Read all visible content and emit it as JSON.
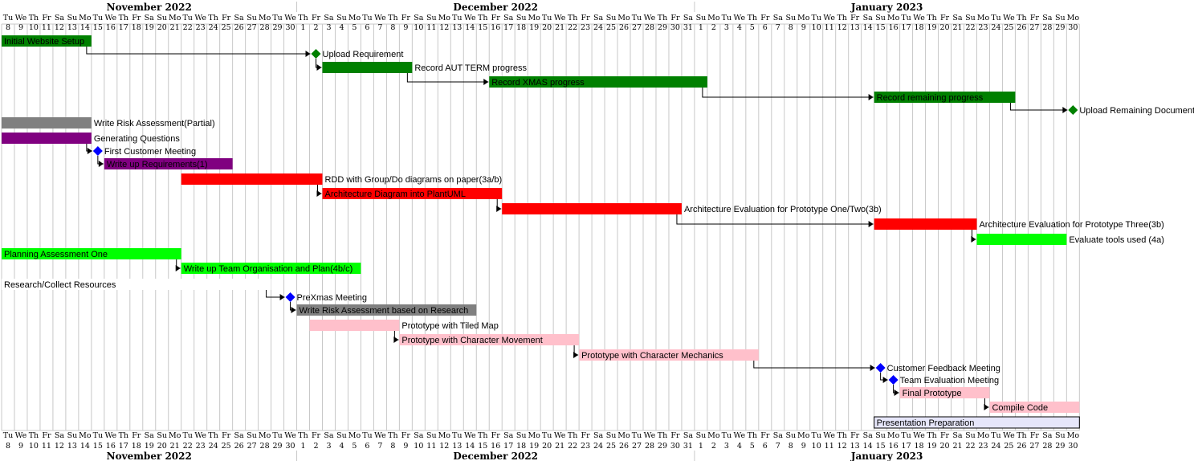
{
  "months": [
    {
      "label": "November 2022",
      "start": 0,
      "end": 23
    },
    {
      "label": "December 2022",
      "start": 23,
      "end": 54
    },
    {
      "label": "January 2023",
      "start": 54,
      "end": 84
    }
  ],
  "days": [
    {
      "w": "Tu",
      "n": "8"
    },
    {
      "w": "We",
      "n": "9"
    },
    {
      "w": "Th",
      "n": "10"
    },
    {
      "w": "Fr",
      "n": "11"
    },
    {
      "w": "Sa",
      "n": "12"
    },
    {
      "w": "Su",
      "n": "13"
    },
    {
      "w": "Mo",
      "n": "14"
    },
    {
      "w": "Tu",
      "n": "15"
    },
    {
      "w": "We",
      "n": "16"
    },
    {
      "w": "Th",
      "n": "17"
    },
    {
      "w": "Fr",
      "n": "18"
    },
    {
      "w": "Sa",
      "n": "19"
    },
    {
      "w": "Su",
      "n": "20"
    },
    {
      "w": "Mo",
      "n": "21"
    },
    {
      "w": "Tu",
      "n": "22"
    },
    {
      "w": "We",
      "n": "23"
    },
    {
      "w": "Th",
      "n": "24"
    },
    {
      "w": "Fr",
      "n": "25"
    },
    {
      "w": "Sa",
      "n": "26"
    },
    {
      "w": "Su",
      "n": "27"
    },
    {
      "w": "Mo",
      "n": "28"
    },
    {
      "w": "Tu",
      "n": "29"
    },
    {
      "w": "We",
      "n": "30"
    },
    {
      "w": "Th",
      "n": "1"
    },
    {
      "w": "Fr",
      "n": "2"
    },
    {
      "w": "Sa",
      "n": "3"
    },
    {
      "w": "Su",
      "n": "4"
    },
    {
      "w": "Mo",
      "n": "5"
    },
    {
      "w": "Tu",
      "n": "6"
    },
    {
      "w": "We",
      "n": "7"
    },
    {
      "w": "Th",
      "n": "8"
    },
    {
      "w": "Fr",
      "n": "9"
    },
    {
      "w": "Sa",
      "n": "10"
    },
    {
      "w": "Su",
      "n": "11"
    },
    {
      "w": "Mo",
      "n": "12"
    },
    {
      "w": "Tu",
      "n": "13"
    },
    {
      "w": "We",
      "n": "14"
    },
    {
      "w": "Th",
      "n": "15"
    },
    {
      "w": "Fr",
      "n": "16"
    },
    {
      "w": "Sa",
      "n": "17"
    },
    {
      "w": "Su",
      "n": "18"
    },
    {
      "w": "Mo",
      "n": "19"
    },
    {
      "w": "Tu",
      "n": "20"
    },
    {
      "w": "We",
      "n": "21"
    },
    {
      "w": "Th",
      "n": "22"
    },
    {
      "w": "Fr",
      "n": "23"
    },
    {
      "w": "Sa",
      "n": "24"
    },
    {
      "w": "Su",
      "n": "25"
    },
    {
      "w": "Mo",
      "n": "26"
    },
    {
      "w": "Tu",
      "n": "27"
    },
    {
      "w": "We",
      "n": "28"
    },
    {
      "w": "Th",
      "n": "29"
    },
    {
      "w": "Fr",
      "n": "30"
    },
    {
      "w": "Sa",
      "n": "31"
    },
    {
      "w": "Su",
      "n": "1"
    },
    {
      "w": "Mo",
      "n": "2"
    },
    {
      "w": "Tu",
      "n": "3"
    },
    {
      "w": "We",
      "n": "4"
    },
    {
      "w": "Th",
      "n": "5"
    },
    {
      "w": "Fr",
      "n": "6"
    },
    {
      "w": "Sa",
      "n": "7"
    },
    {
      "w": "Su",
      "n": "8"
    },
    {
      "w": "Mo",
      "n": "9"
    },
    {
      "w": "Tu",
      "n": "10"
    },
    {
      "w": "We",
      "n": "11"
    },
    {
      "w": "Th",
      "n": "12"
    },
    {
      "w": "Fr",
      "n": "13"
    },
    {
      "w": "Sa",
      "n": "14"
    },
    {
      "w": "Su",
      "n": "15"
    },
    {
      "w": "Mo",
      "n": "16"
    },
    {
      "w": "Tu",
      "n": "17"
    },
    {
      "w": "We",
      "n": "18"
    },
    {
      "w": "Th",
      "n": "19"
    },
    {
      "w": "Fr",
      "n": "20"
    },
    {
      "w": "Sa",
      "n": "21"
    },
    {
      "w": "Su",
      "n": "22"
    },
    {
      "w": "Mo",
      "n": "23"
    },
    {
      "w": "Tu",
      "n": "24"
    },
    {
      "w": "We",
      "n": "25"
    },
    {
      "w": "Th",
      "n": "26"
    },
    {
      "w": "Fr",
      "n": "27"
    },
    {
      "w": "Sa",
      "n": "28"
    },
    {
      "w": "Su",
      "n": "29"
    },
    {
      "w": "Mo",
      "n": "30"
    }
  ],
  "tasks": [
    {
      "id": "t1",
      "label": "Initial Website Setup",
      "start": 0,
      "end": 6,
      "color": "#008000",
      "inside": true
    },
    {
      "id": "t2",
      "label": "Upload Requirement",
      "day": 24,
      "milestone": true,
      "color": "#008000"
    },
    {
      "id": "t3",
      "label": "Record AUT TERM progress",
      "start": 25,
      "end": 31,
      "color": "#008000"
    },
    {
      "id": "t4",
      "label": "Record XMAS progress",
      "start": 38,
      "end": 54,
      "color": "#008000",
      "inside": true
    },
    {
      "id": "t5",
      "label": "Record remaining progress",
      "start": 68,
      "end": 78,
      "color": "#008000",
      "inside": true
    },
    {
      "id": "t6",
      "label": "Upload Remaining Documents",
      "day": 83,
      "milestone": true,
      "color": "#008000"
    },
    {
      "id": "t7",
      "label": "Write Risk Assessment(Partial)",
      "start": 0,
      "end": 6,
      "color": "#808080"
    },
    {
      "id": "t8",
      "label": "Generating Questions",
      "start": 0,
      "end": 6,
      "color": "#800080"
    },
    {
      "id": "t9",
      "label": "First Customer Meeting",
      "day": 7,
      "milestone": true,
      "color": "#0000ff"
    },
    {
      "id": "t10",
      "label": "Write up Requirements(1)",
      "start": 8,
      "end": 17,
      "color": "#800080",
      "inside": true
    },
    {
      "id": "t11",
      "label": "RDD with Group/Do diagrams on paper(3a/b)",
      "start": 14,
      "end": 24,
      "color": "#ff0000"
    },
    {
      "id": "t12",
      "label": "Architecture Diagram into PlantUML",
      "start": 25,
      "end": 38,
      "color": "#ff0000",
      "inside": true
    },
    {
      "id": "t13",
      "label": "Architecture Evaluation for Prototype One/Two(3b)",
      "start": 39,
      "end": 52,
      "color": "#ff0000"
    },
    {
      "id": "t14",
      "label": "Architecture Evaluation for Prototype Three(3b)",
      "start": 68,
      "end": 75,
      "color": "#ff0000"
    },
    {
      "id": "t15",
      "label": "Evaluate tools used (4a)",
      "start": 76,
      "end": 82,
      "color": "#00ff00"
    },
    {
      "id": "t16",
      "label": "Planning Assessment One",
      "start": 0,
      "end": 13,
      "color": "#00ff00",
      "inside": true
    },
    {
      "id": "t17",
      "label": "Write up Team Organisation and Plan(4b/c)",
      "start": 14,
      "end": 27,
      "color": "#00ff00",
      "inside": true
    },
    {
      "id": "t18",
      "label": "Research/Collect Resources",
      "start": 0,
      "end": 20,
      "color": "#ffffff",
      "inside": true
    },
    {
      "id": "t19",
      "label": "PreXmas Meeting",
      "day": 22,
      "milestone": true,
      "color": "#0000ff"
    },
    {
      "id": "t20",
      "label": "Write Risk Assessment based on Research",
      "start": 23,
      "end": 36,
      "color": "#808080",
      "inside": true
    },
    {
      "id": "t21",
      "label": "Prototype with Tiled Map",
      "start": 24,
      "end": 30,
      "color": "#ffc0cb"
    },
    {
      "id": "t22",
      "label": "Prototype with Character Movement",
      "start": 31,
      "end": 44,
      "color": "#ffc0cb",
      "inside": true
    },
    {
      "id": "t23",
      "label": "Prototype with Character Mechanics",
      "start": 45,
      "end": 58,
      "color": "#ffc0cb",
      "inside": true
    },
    {
      "id": "t24",
      "label": "Customer Feedback Meeting",
      "day": 68,
      "milestone": true,
      "color": "#0000ff"
    },
    {
      "id": "t25",
      "label": "Team Evaluation Meeting",
      "day": 69,
      "milestone": true,
      "color": "#0000ff"
    },
    {
      "id": "t26",
      "label": "Final Prototype",
      "start": 70,
      "end": 76,
      "color": "#ffc0cb",
      "inside": true
    },
    {
      "id": "t27",
      "label": "Compile Code",
      "start": 77,
      "end": 83,
      "color": "#ffc0cb",
      "inside": true
    },
    {
      "id": "t28",
      "label": "Presentation Preparation",
      "start": 68,
      "end": 83,
      "color": "#e6e6fa",
      "border": "#000000",
      "inside": true
    }
  ],
  "dependencies": [
    {
      "from": "t1",
      "to": "t2"
    },
    {
      "from": "t2",
      "to": "t3"
    },
    {
      "from": "t3",
      "to": "t4"
    },
    {
      "from": "t4",
      "to": "t5"
    },
    {
      "from": "t5",
      "to": "t6"
    },
    {
      "from": "t8",
      "to": "t9"
    },
    {
      "from": "t9",
      "to": "t10"
    },
    {
      "from": "t11",
      "to": "t12"
    },
    {
      "from": "t12",
      "to": "t13"
    },
    {
      "from": "t13",
      "to": "t14"
    },
    {
      "from": "t14",
      "to": "t15"
    },
    {
      "from": "t16",
      "to": "t17"
    },
    {
      "from": "t18",
      "to": "t19"
    },
    {
      "from": "t19",
      "to": "t20"
    },
    {
      "from": "t21",
      "to": "t22"
    },
    {
      "from": "t22",
      "to": "t23"
    },
    {
      "from": "t23",
      "to": "t24"
    },
    {
      "from": "t24",
      "to": "t25"
    },
    {
      "from": "t25",
      "to": "t26"
    },
    {
      "from": "t26",
      "to": "t27"
    }
  ]
}
